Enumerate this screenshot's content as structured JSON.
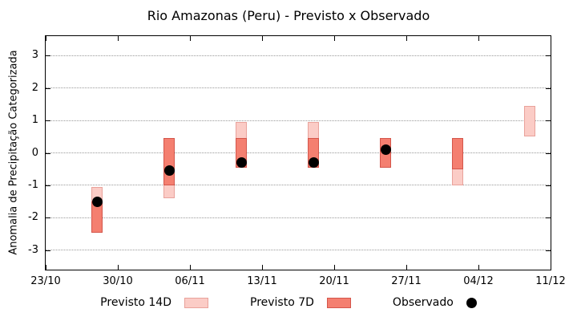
{
  "chart_data": {
    "type": "bar",
    "title": "Rio Amazonas (Peru) - Previsto x Observado",
    "ylabel": "Anomalia de Precipitação Categorizada",
    "xlabel": "",
    "ylim": [
      -3.6,
      3.6
    ],
    "yticks": [
      3,
      2,
      1,
      0,
      -1,
      -2,
      -3
    ],
    "grid": "horizontal-dotted",
    "xlim_days": [
      0,
      49
    ],
    "xticks": [
      {
        "day": 0,
        "label": "23/10"
      },
      {
        "day": 7,
        "label": "30/10"
      },
      {
        "day": 14,
        "label": "06/11"
      },
      {
        "day": 21,
        "label": "13/11"
      },
      {
        "day": 28,
        "label": "20/11"
      },
      {
        "day": 35,
        "label": "27/11"
      },
      {
        "day": 42,
        "label": "04/12"
      },
      {
        "day": 49,
        "label": "11/12"
      }
    ],
    "points": [
      {
        "day": 5,
        "previsto_14d": [
          -2.45,
          -1.05
        ],
        "previsto_7d": [
          -2.45,
          -1.5
        ],
        "observado": -1.5
      },
      {
        "day": 12,
        "previsto_14d": [
          -1.4,
          0.45
        ],
        "previsto_7d": [
          -1.0,
          0.45
        ],
        "observado": -0.55
      },
      {
        "day": 19,
        "previsto_14d": [
          -0.45,
          0.95
        ],
        "previsto_7d": [
          -0.45,
          0.45
        ],
        "observado": -0.3
      },
      {
        "day": 26,
        "previsto_14d": [
          -0.45,
          0.95
        ],
        "previsto_7d": [
          -0.45,
          0.45
        ],
        "observado": -0.3
      },
      {
        "day": 33,
        "previsto_14d": [
          -0.45,
          0.45
        ],
        "previsto_7d": [
          -0.45,
          0.45
        ],
        "observado": 0.1
      },
      {
        "day": 40,
        "previsto_14d": [
          -1.0,
          0.45
        ],
        "previsto_7d": [
          -0.5,
          0.45
        ],
        "observado": null
      },
      {
        "day": 47,
        "previsto_14d": [
          0.5,
          1.45
        ],
        "previsto_7d": null,
        "observado": null
      }
    ],
    "colors": {
      "p14_fill": "#fbccc6",
      "p14_border": "#e9a29b",
      "p7_fill": "#f47f70",
      "p7_border": "#d4564b",
      "obs": "#000000",
      "grid": "#999999",
      "axis": "#000000"
    },
    "legend": [
      {
        "label": "Previsto 14D",
        "swatch": "p14"
      },
      {
        "label": "Previsto 7D",
        "swatch": "p7"
      },
      {
        "label": "Observado",
        "swatch": "obs"
      }
    ]
  }
}
